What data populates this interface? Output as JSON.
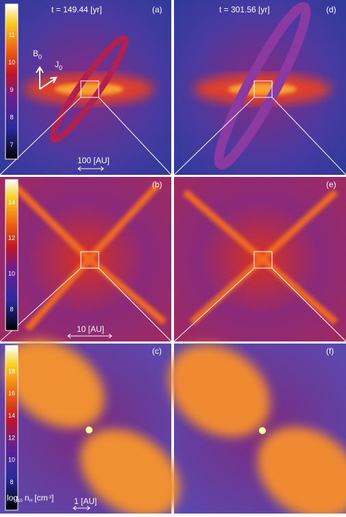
{
  "times": [
    "t = 149.44 [yr]",
    "t = 301.56 [yr]"
  ],
  "panels": [
    "(a)",
    "(b)",
    "(c)",
    "(d)",
    "(e)",
    "(f)"
  ],
  "vectors": [
    {
      "symbol": "B",
      "subscript": "0"
    },
    {
      "symbol": "J",
      "subscript": "0"
    }
  ],
  "scale_bars": [
    "100 [AU]",
    "10 [AU]",
    "1 [AU]"
  ],
  "colorbars": [
    {
      "ticks": [
        12,
        11,
        10,
        9,
        8,
        7
      ]
    },
    {
      "ticks": [
        14,
        12,
        10,
        8
      ]
    },
    {
      "ticks": [
        20,
        18,
        16,
        14,
        12,
        10,
        8
      ]
    }
  ],
  "colorbar_label": {
    "log": "log",
    "log_sub": "10",
    "n": " n",
    "n_sub": "H",
    "unit": " [cm",
    "unit_sup": "-3",
    "close": "]"
  }
}
